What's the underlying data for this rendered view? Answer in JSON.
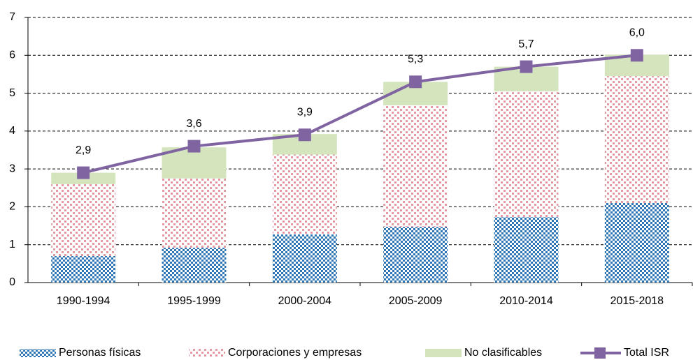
{
  "chart_data": {
    "type": "stacked-bar-line",
    "categories": [
      "1990-1994",
      "1995-1999",
      "2000-2004",
      "2005-2009",
      "2010-2014",
      "2015-2018"
    ],
    "series": [
      {
        "name": "Personas físicas",
        "color": "#2e75b6",
        "type": "bar",
        "values": [
          0.7,
          0.92,
          1.27,
          1.47,
          1.73,
          2.1
        ]
      },
      {
        "name": "Corporaciones y empresas",
        "color": "#e39aa3",
        "type": "bar",
        "values": [
          1.9,
          1.83,
          2.11,
          3.21,
          3.32,
          3.35
        ]
      },
      {
        "name": "No clasificables",
        "color": "#d4e5bd",
        "type": "bar",
        "values": [
          0.3,
          0.82,
          0.54,
          0.62,
          0.65,
          0.57
        ]
      },
      {
        "name": "Total ISR",
        "color": "#8064a2",
        "type": "line",
        "values": [
          2.9,
          3.6,
          3.9,
          5.3,
          5.7,
          6.0
        ],
        "value_labels": [
          "2,9",
          "3,6",
          "3,9",
          "5,3",
          "5,7",
          "6,0"
        ]
      }
    ],
    "ylim": [
      0,
      7
    ],
    "yticks": [
      0,
      1,
      2,
      3,
      4,
      5,
      6,
      7
    ],
    "grid": true,
    "legend": "bottom"
  }
}
